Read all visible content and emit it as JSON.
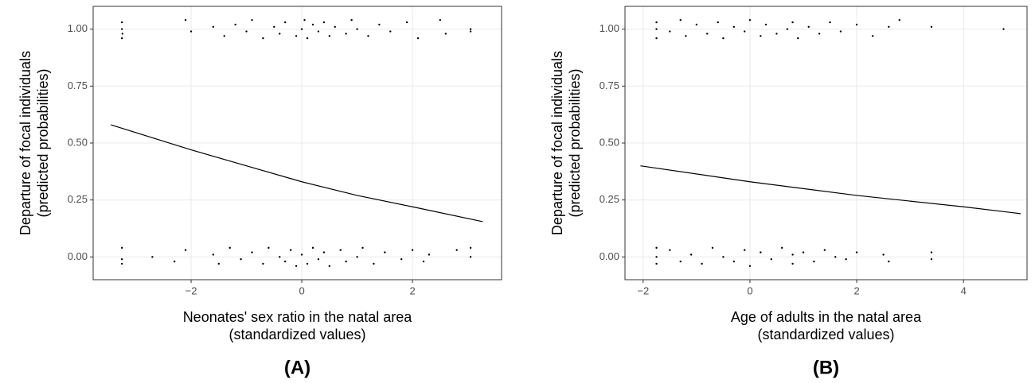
{
  "chart_data": [
    {
      "type": "scatter",
      "caption": "(A)",
      "xlabel": [
        "Neonates' sex ratio in the natal area",
        "(standardized values)"
      ],
      "ylabel": [
        "Departure of focal individuals",
        "(predicted probabilities)"
      ],
      "xlim": [
        -3.77,
        3.61
      ],
      "ylim": [
        -0.1,
        1.1
      ],
      "xticks": [
        {
          "value": -2,
          "label": "−2"
        },
        0,
        2
      ],
      "yticks": [
        {
          "value": 0,
          "label": "0.00"
        },
        {
          "value": 0.25,
          "label": "0.25"
        },
        {
          "value": 0.5,
          "label": "0.50"
        },
        {
          "value": 0.75,
          "label": "0.75"
        },
        {
          "value": 1,
          "label": "1.00"
        }
      ],
      "grid": true,
      "series": [
        {
          "mode": "points",
          "color": "#000000",
          "x": [
            -3.25,
            -3.25,
            -3.25,
            -3.24,
            -2.1,
            -2.0,
            -1.6,
            -1.4,
            -1.2,
            -1.0,
            -0.9,
            -0.7,
            -0.5,
            -0.4,
            -0.3,
            -0.1,
            0.0,
            0.05,
            0.1,
            0.2,
            0.3,
            0.4,
            0.5,
            0.6,
            0.8,
            0.9,
            1.0,
            1.2,
            1.4,
            1.6,
            1.9,
            2.1,
            2.5,
            2.6,
            3.05,
            3.05,
            -3.25,
            -3.25,
            -3.25,
            -2.7,
            -2.3,
            -2.1,
            -1.6,
            -1.5,
            -1.3,
            -1.1,
            -0.9,
            -0.7,
            -0.6,
            -0.4,
            -0.3,
            -0.2,
            -0.1,
            0.0,
            0.1,
            0.2,
            0.3,
            0.4,
            0.5,
            0.7,
            0.8,
            1.0,
            1.1,
            1.3,
            1.5,
            1.8,
            2.0,
            2.2,
            2.3,
            2.8,
            3.05,
            3.05
          ],
          "values": [
            0.96,
            1.0,
            1.03,
            0.98,
            1.04,
            0.99,
            1.01,
            0.97,
            1.02,
            0.99,
            1.04,
            0.96,
            1.01,
            0.98,
            1.03,
            0.97,
            1.0,
            1.04,
            0.96,
            1.02,
            0.99,
            1.03,
            0.97,
            1.01,
            0.98,
            1.04,
            1.0,
            0.97,
            1.02,
            0.99,
            1.03,
            0.96,
            1.04,
            0.98,
            1.0,
            0.99,
            0.04,
            -0.01,
            -0.03,
            0.0,
            -0.02,
            0.03,
            0.01,
            -0.03,
            0.04,
            -0.01,
            0.02,
            -0.03,
            0.04,
            0.0,
            -0.02,
            0.03,
            -0.04,
            0.01,
            -0.03,
            0.04,
            -0.01,
            0.02,
            -0.04,
            0.03,
            -0.02,
            0.0,
            0.04,
            -0.03,
            0.02,
            -0.01,
            0.03,
            -0.02,
            0.01,
            0.03,
            0.0,
            0.04
          ]
        },
        {
          "mode": "line",
          "color": "#000000",
          "x": [
            -3.45,
            -2,
            -1,
            0,
            1,
            2,
            3.27
          ],
          "values": [
            0.58,
            0.47,
            0.4,
            0.33,
            0.27,
            0.22,
            0.155
          ]
        }
      ]
    },
    {
      "type": "scatter",
      "caption": "(B)",
      "xlabel": [
        "Age of adults in the natal area",
        "(standardized values)"
      ],
      "ylabel": [
        "Departure of focal individuals",
        "(predicted probabilities)"
      ],
      "xlim": [
        -2.34,
        5.19
      ],
      "ylim": [
        -0.1,
        1.1
      ],
      "xticks": [
        {
          "value": -2,
          "label": "−2"
        },
        0,
        2,
        4
      ],
      "yticks": [
        {
          "value": 0,
          "label": "0.00"
        },
        {
          "value": 0.25,
          "label": "0.25"
        },
        {
          "value": 0.5,
          "label": "0.50"
        },
        {
          "value": 0.75,
          "label": "0.75"
        },
        {
          "value": 1,
          "label": "1.00"
        }
      ],
      "grid": true,
      "series": [
        {
          "mode": "points",
          "color": "#000000",
          "x": [
            -1.75,
            -1.75,
            -1.75,
            -1.5,
            -1.3,
            -1.2,
            -1.0,
            -0.8,
            -0.6,
            -0.5,
            -0.3,
            -0.1,
            0.0,
            0.2,
            0.3,
            0.5,
            0.7,
            0.8,
            0.9,
            1.1,
            1.3,
            1.5,
            1.7,
            2.0,
            2.3,
            2.6,
            2.8,
            3.4,
            4.75,
            -1.75,
            -1.75,
            -1.75,
            -1.5,
            -1.3,
            -1.1,
            -0.9,
            -0.7,
            -0.5,
            -0.3,
            -0.1,
            0.0,
            0.2,
            0.4,
            0.6,
            0.8,
            0.8,
            1.0,
            1.2,
            1.4,
            1.6,
            1.8,
            2.0,
            2.5,
            2.6,
            3.4,
            3.4
          ],
          "values": [
            0.96,
            1.0,
            1.03,
            0.99,
            1.04,
            0.97,
            1.02,
            0.98,
            1.03,
            0.96,
            1.01,
            0.99,
            1.04,
            0.97,
            1.02,
            0.98,
            1.0,
            1.03,
            0.96,
            1.01,
            0.98,
            1.03,
            0.99,
            1.02,
            0.97,
            1.01,
            1.04,
            1.01,
            1.0,
            0.04,
            0.0,
            -0.03,
            0.03,
            -0.02,
            0.01,
            -0.03,
            0.04,
            0.0,
            -0.02,
            0.03,
            -0.04,
            0.02,
            -0.01,
            0.04,
            -0.03,
            0.01,
            0.02,
            -0.02,
            0.03,
            0.0,
            -0.01,
            0.02,
            0.01,
            -0.02,
            0.02,
            -0.01
          ]
        },
        {
          "mode": "line",
          "color": "#000000",
          "x": [
            -2.05,
            0,
            2,
            4,
            5.07
          ],
          "values": [
            0.4,
            0.33,
            0.27,
            0.22,
            0.19
          ]
        }
      ]
    }
  ]
}
